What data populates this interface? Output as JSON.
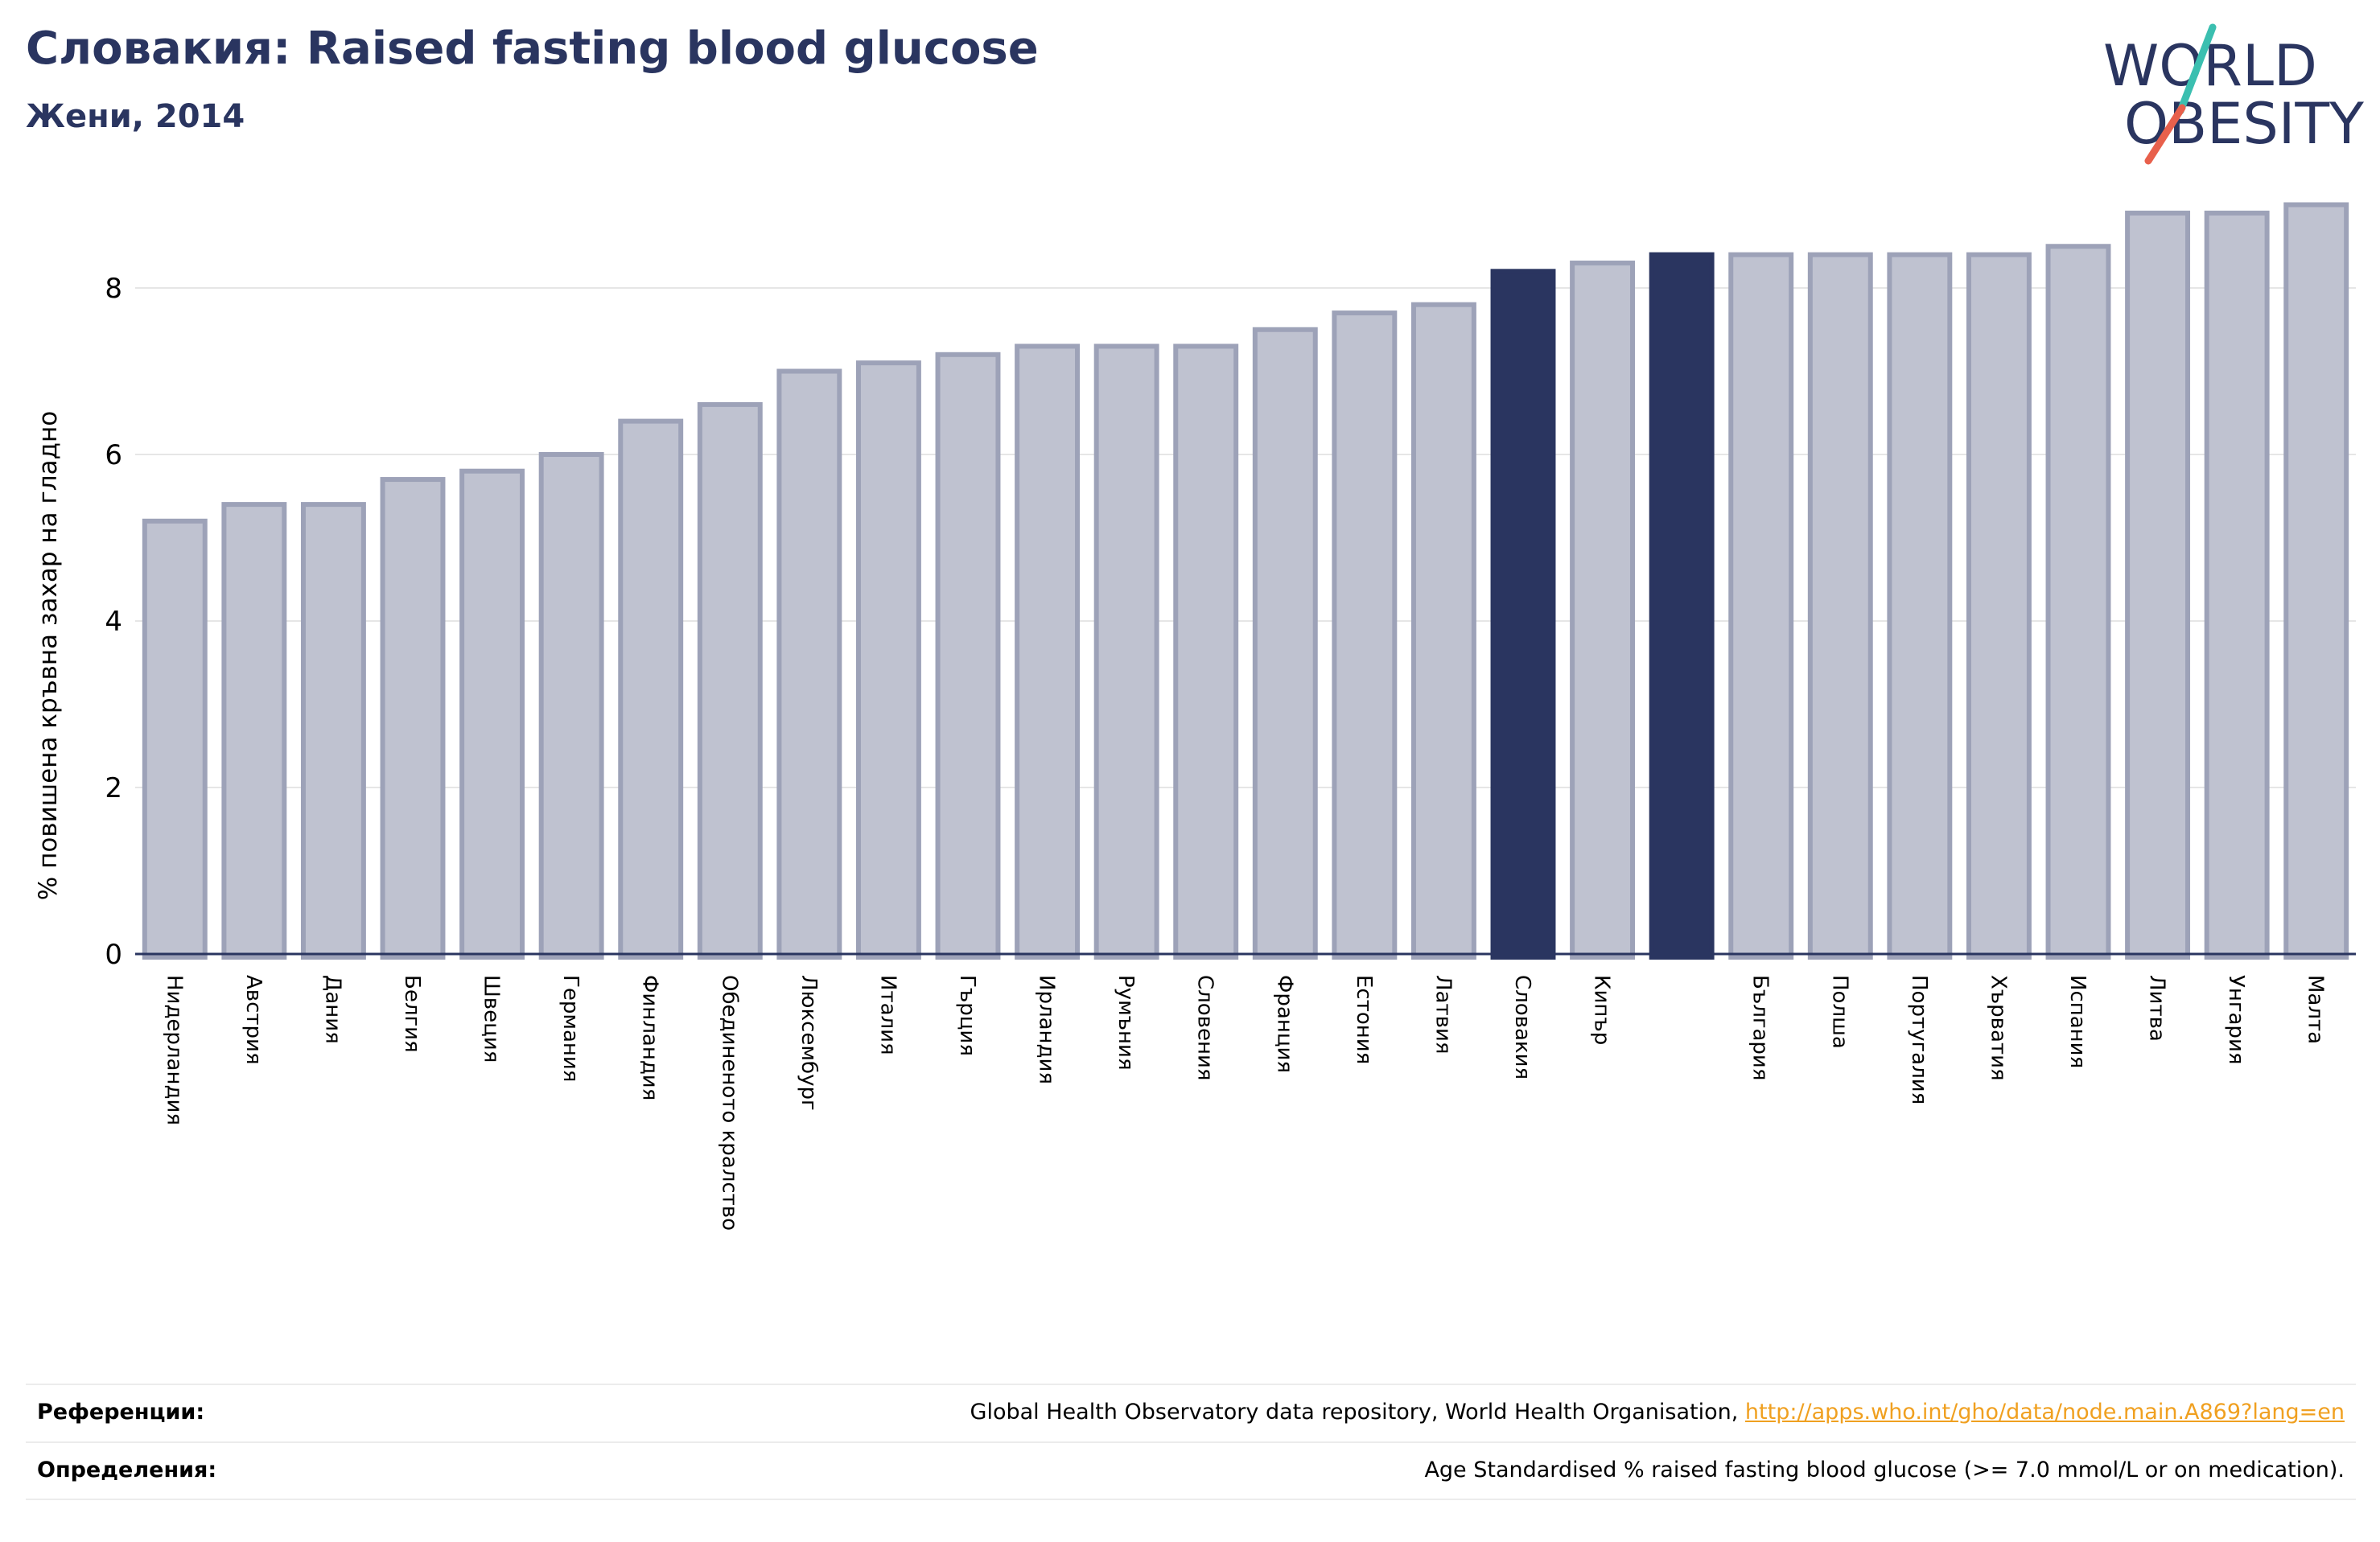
{
  "header": {
    "title": "Словакия: Raised fasting blood glucose",
    "subtitle": "Жени, 2014"
  },
  "logo": {
    "line1": "WORLD",
    "line2": "OBESITY",
    "text_color": "#2a3560",
    "slash_colors": [
      "#e8604c",
      "#3bbfb0"
    ]
  },
  "colors": {
    "bar_default": "#bfc2d0",
    "bar_default_stroke": "#9da2b8",
    "bar_highlight": "#2a3560",
    "axis": "#2a3560",
    "grid": "#e6e6e6"
  },
  "chart_data": {
    "type": "bar",
    "ylabel": "% повишена кръвна захар на гладно",
    "ylim": [
      0,
      9.2
    ],
    "yticks": [
      0,
      2,
      4,
      6,
      8
    ],
    "grid": true,
    "categories": [
      "Нидерландия",
      "Австрия",
      "Дания",
      "Белгия",
      "Швеция",
      "Германия",
      "Финландия",
      "Обединеното кралство",
      "Люксембург",
      "Италия",
      "Гърция",
      "Ирландия",
      "Румъния",
      "Словения",
      "Франция",
      "Естония",
      "Латвия",
      "Словакия",
      "Кипър",
      "",
      "България",
      "Полша",
      "Португалия",
      "Хърватия",
      "Испания",
      "Литва",
      "Унгария",
      "Малта"
    ],
    "values": [
      5.2,
      5.4,
      5.4,
      5.7,
      5.8,
      6.0,
      6.4,
      6.6,
      7.0,
      7.1,
      7.2,
      7.3,
      7.3,
      7.3,
      7.5,
      7.7,
      7.8,
      8.2,
      8.3,
      8.4,
      8.4,
      8.4,
      8.4,
      8.4,
      8.5,
      8.9,
      8.9,
      9.0
    ],
    "highlighted": [
      17,
      19
    ]
  },
  "footer": {
    "references_label": "Референции:",
    "references_text": "Global Health Observatory data repository, World Health Organisation, ",
    "references_link": "http://apps.who.int/gho/data/node.main.A869?lang=en",
    "definitions_label": "Определения:",
    "definitions_text": "Age Standardised % raised fasting blood glucose (>= 7.0 mmol/L or on medication)."
  }
}
